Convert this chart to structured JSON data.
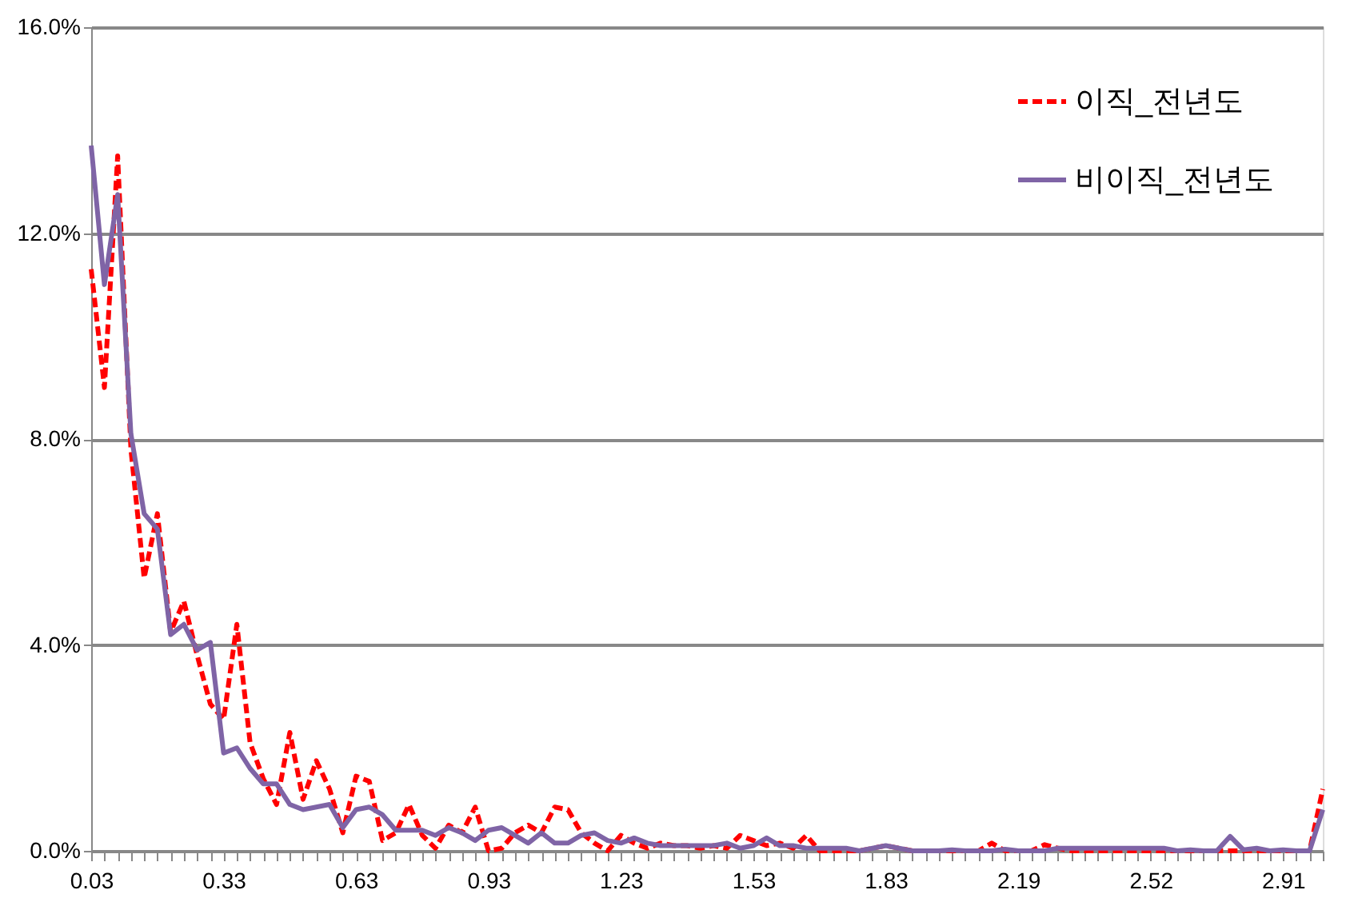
{
  "chart_data": {
    "type": "line",
    "categories": [
      "0.03",
      null,
      null,
      null,
      null,
      null,
      null,
      null,
      null,
      null,
      "0.33",
      null,
      null,
      null,
      null,
      null,
      null,
      null,
      null,
      null,
      "0.63",
      null,
      null,
      null,
      null,
      null,
      null,
      null,
      null,
      null,
      "0.93",
      null,
      null,
      null,
      null,
      null,
      null,
      null,
      null,
      null,
      "1.23",
      null,
      null,
      null,
      null,
      null,
      null,
      null,
      null,
      null,
      "1.53",
      null,
      null,
      null,
      null,
      null,
      null,
      null,
      null,
      null,
      "1.83",
      null,
      null,
      null,
      null,
      null,
      null,
      null,
      null,
      null,
      "2.19",
      null,
      null,
      null,
      null,
      null,
      null,
      null,
      null,
      null,
      "2.52",
      null,
      null,
      null,
      null,
      null,
      null,
      null,
      null,
      null,
      "2.91",
      null,
      null,
      null
    ],
    "series": [
      {
        "name": "이직_전년도",
        "color": "#ff0000",
        "line_style": "dashed",
        "values": [
          11.3,
          9.0,
          13.5,
          7.8,
          5.3,
          6.55,
          4.25,
          4.85,
          3.8,
          2.85,
          2.55,
          4.4,
          2.1,
          1.4,
          0.9,
          2.3,
          1.0,
          1.75,
          1.2,
          0.35,
          1.45,
          1.35,
          0.2,
          0.35,
          0.9,
          0.3,
          0.05,
          0.5,
          0.35,
          0.85,
          0,
          0.05,
          0.35,
          0.5,
          0.35,
          0.85,
          0.8,
          0.35,
          0.15,
          0,
          0.3,
          0.15,
          0.05,
          0.15,
          0.1,
          0.1,
          0.05,
          0.1,
          0.05,
          0.3,
          0.2,
          0.1,
          0.15,
          0.05,
          0.3,
          0,
          0,
          0,
          0,
          0.05,
          0.1,
          0.05,
          0,
          0,
          0,
          0,
          0,
          0,
          0.15,
          0,
          0,
          0,
          0.12,
          0.05,
          0,
          0,
          0,
          0,
          0,
          0,
          0,
          0,
          0,
          0,
          0,
          0,
          0,
          0,
          0,
          0,
          0,
          0,
          0,
          1.2
        ]
      },
      {
        "name": "비이직_전년도",
        "color": "#7f64a6",
        "line_style": "solid",
        "values": [
          13.7,
          11.0,
          12.75,
          8.1,
          6.55,
          6.25,
          4.2,
          4.4,
          3.9,
          4.05,
          1.9,
          2.0,
          1.6,
          1.3,
          1.3,
          0.9,
          0.8,
          0.85,
          0.9,
          0.45,
          0.8,
          0.85,
          0.7,
          0.4,
          0.4,
          0.4,
          0.3,
          0.45,
          0.35,
          0.2,
          0.4,
          0.45,
          0.3,
          0.15,
          0.35,
          0.15,
          0.15,
          0.3,
          0.35,
          0.2,
          0.15,
          0.25,
          0.15,
          0.1,
          0.1,
          0.1,
          0.1,
          0.1,
          0.15,
          0.05,
          0.1,
          0.25,
          0.1,
          0.1,
          0.05,
          0.05,
          0.05,
          0.05,
          0,
          0.05,
          0.1,
          0.05,
          0,
          0,
          0,
          0.02,
          0,
          0,
          0,
          0.03,
          0,
          0,
          0,
          0.05,
          0.05,
          0.05,
          0.05,
          0.05,
          0.05,
          0.05,
          0.05,
          0.05,
          0,
          0.02,
          0,
          0,
          0.28,
          0.02,
          0.05,
          0,
          0.02,
          0,
          0,
          0.8
        ]
      }
    ],
    "ylim": [
      0,
      16
    ],
    "yticks": [
      {
        "value": 0,
        "label": "0.0%"
      },
      {
        "value": 4,
        "label": "4.0%"
      },
      {
        "value": 8,
        "label": "8.0%"
      },
      {
        "value": 12,
        "label": "12.0%"
      },
      {
        "value": 16,
        "label": "16.0%"
      }
    ],
    "grid": "y",
    "legend": "top right"
  }
}
